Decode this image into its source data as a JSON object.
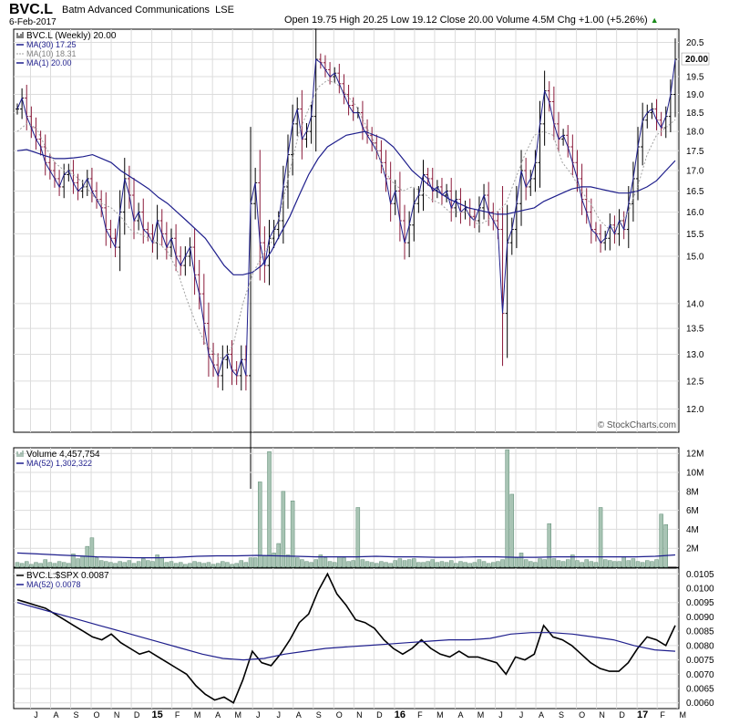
{
  "header": {
    "symbol": "BVC.L",
    "company": "Batm Advanced Communications",
    "exchange": "LSE",
    "date": "6-Feb-2017",
    "ohlc_text": "Open 19.75  High 20.25  Low 19.12  Close 20.00  Volume 4.5M  Chg +1.00 (+5.26%)",
    "ohlc_arrow": "▲",
    "credit": "© StockCharts.com"
  },
  "colors": {
    "price_up": "#000000",
    "price_down": "#8b1a3a",
    "ma_line": "#1e1e8c",
    "ma_fast": "#a0a0a0",
    "volume_bar": "#a8c4b4",
    "volume_bar_stroke": "#5c8a72",
    "grid": "#dcdcdc"
  },
  "legends": {
    "price": [
      {
        "text": "BVC.L (Weekly) 20.00",
        "style": "bars"
      },
      {
        "text": "MA(30) 17.25",
        "style": "ma"
      },
      {
        "text": "MA(10) 18.31",
        "style": "dotted"
      },
      {
        "text": "MA(1) 20.00",
        "style": "ma"
      }
    ],
    "volume": [
      {
        "text": "Volume 4,457,754",
        "style": "vol"
      },
      {
        "text": "MA(52) 1,302,322",
        "style": "ma"
      }
    ],
    "ratio": [
      {
        "text": "BVC.L:$SPX 0.0087",
        "style": "ratio"
      },
      {
        "text": "MA(52) 0.0078",
        "style": "ma"
      }
    ]
  },
  "x_labels": [
    {
      "text": "J",
      "bold": false,
      "t": 4
    },
    {
      "text": "A",
      "bold": false,
      "t": 8.3
    },
    {
      "text": "S",
      "bold": false,
      "t": 12.6
    },
    {
      "text": "O",
      "bold": false,
      "t": 17
    },
    {
      "text": "N",
      "bold": false,
      "t": 21.3
    },
    {
      "text": "D",
      "bold": false,
      "t": 25.6
    },
    {
      "text": "15",
      "bold": true,
      "t": 30
    },
    {
      "text": "F",
      "bold": false,
      "t": 34.3
    },
    {
      "text": "M",
      "bold": false,
      "t": 38.6
    },
    {
      "text": "A",
      "bold": false,
      "t": 43
    },
    {
      "text": "M",
      "bold": false,
      "t": 47.3
    },
    {
      "text": "J",
      "bold": false,
      "t": 51.6
    },
    {
      "text": "J",
      "bold": false,
      "t": 56
    },
    {
      "text": "A",
      "bold": false,
      "t": 60.3
    },
    {
      "text": "S",
      "bold": false,
      "t": 64.6
    },
    {
      "text": "O",
      "bold": false,
      "t": 69
    },
    {
      "text": "N",
      "bold": false,
      "t": 73.3
    },
    {
      "text": "D",
      "bold": false,
      "t": 77.6
    },
    {
      "text": "16",
      "bold": true,
      "t": 82
    },
    {
      "text": "F",
      "bold": false,
      "t": 86.3
    },
    {
      "text": "M",
      "bold": false,
      "t": 90.6
    },
    {
      "text": "A",
      "bold": false,
      "t": 95
    },
    {
      "text": "M",
      "bold": false,
      "t": 99.3
    },
    {
      "text": "J",
      "bold": false,
      "t": 103.6
    },
    {
      "text": "J",
      "bold": false,
      "t": 108
    },
    {
      "text": "A",
      "bold": false,
      "t": 112.3
    },
    {
      "text": "S",
      "bold": false,
      "t": 116.6
    },
    {
      "text": "O",
      "bold": false,
      "t": 121
    },
    {
      "text": "N",
      "bold": false,
      "t": 125.3
    },
    {
      "text": "D",
      "bold": false,
      "t": 129.6
    },
    {
      "text": "17",
      "bold": true,
      "t": 134
    },
    {
      "text": "F",
      "bold": false,
      "t": 138.3
    },
    {
      "text": "M",
      "bold": false,
      "t": 142.6
    }
  ],
  "chart_data": [
    {
      "type": "ohlc",
      "title": "BVC.L (Weekly)",
      "interval": "weekly",
      "y_scale": "log",
      "ylim": [
        11.6,
        20.9
      ],
      "y_ticks": [
        12.0,
        12.5,
        13.0,
        13.5,
        14.0,
        15.0,
        15.5,
        16.0,
        16.5,
        17.0,
        17.5,
        18.0,
        18.5,
        19.0,
        19.5,
        20.0,
        20.5
      ],
      "grid": true,
      "legend_position": "top-left",
      "close": [
        18.6,
        18.9,
        18.4,
        18.1,
        17.8,
        17.6,
        17.2,
        17.0,
        16.8,
        16.6,
        16.9,
        17.0,
        16.7,
        16.5,
        16.6,
        16.8,
        16.5,
        16.3,
        16.1,
        15.6,
        15.4,
        15.2,
        16.0,
        16.8,
        16.4,
        15.8,
        16.0,
        15.6,
        15.5,
        15.3,
        15.8,
        15.5,
        15.2,
        15.4,
        15.0,
        14.8,
        15.0,
        15.2,
        14.6,
        14.2,
        13.6,
        13.0,
        12.8,
        12.6,
        12.9,
        13.0,
        12.7,
        12.6,
        12.9,
        12.6,
        16.2,
        16.7,
        15.3,
        14.8,
        15.4,
        15.6,
        15.8,
        16.6,
        17.4,
        18.2,
        18.6,
        17.8,
        18.0,
        18.4,
        20.0,
        19.9,
        19.7,
        19.5,
        19.6,
        19.3,
        19.0,
        18.7,
        18.5,
        18.5,
        18.1,
        17.9,
        17.7,
        17.5,
        17.2,
        16.8,
        16.2,
        16.5,
        15.8,
        15.3,
        15.7,
        16.2,
        16.4,
        16.9,
        16.8,
        16.5,
        16.6,
        16.4,
        16.5,
        16.1,
        16.3,
        16.0,
        16.1,
        15.9,
        15.8,
        16.1,
        16.4,
        16.0,
        15.8,
        15.6,
        13.8,
        15.3,
        15.6,
        16.2,
        17.0,
        16.6,
        16.8,
        17.2,
        18.2,
        19.1,
        18.8,
        18.2,
        17.8,
        17.9,
        17.6,
        17.2,
        16.8,
        16.3,
        16.0,
        15.6,
        15.5,
        15.3,
        15.4,
        15.7,
        15.5,
        15.8,
        15.6,
        16.2,
        16.8,
        17.6,
        18.3,
        18.5,
        18.6,
        18.3,
        18.1,
        18.4,
        19.0,
        20.0
      ],
      "series": [
        {
          "name": "MA(30)",
          "last": 17.25,
          "style": "solid",
          "values": [
            17.5,
            17.53,
            17.45,
            17.37,
            17.3,
            17.3,
            17.32,
            17.35,
            17.4,
            17.3,
            17.2,
            17.0,
            16.85,
            16.7,
            16.55,
            16.35,
            16.2,
            16.0,
            15.8,
            15.6,
            15.4,
            15.1,
            14.8,
            14.6,
            14.6,
            14.65,
            14.8,
            15.1,
            15.5,
            15.9,
            16.4,
            16.9,
            17.3,
            17.6,
            17.75,
            17.9,
            17.95,
            18.0,
            17.9,
            17.8,
            17.6,
            17.3,
            17.0,
            16.8,
            16.6,
            16.45,
            16.3,
            16.2,
            16.1,
            16.05,
            16.0,
            15.95,
            15.95,
            16.0,
            16.05,
            16.1,
            16.25,
            16.35,
            16.45,
            16.55,
            16.6,
            16.6,
            16.55,
            16.5,
            16.45,
            16.45,
            16.5,
            16.6,
            16.75,
            17.0,
            17.25
          ]
        },
        {
          "name": "MA(10)",
          "last": 18.31,
          "style": "dotted",
          "values": [
            18.0,
            18.2,
            18.1,
            17.6,
            17.2,
            17.0,
            16.9,
            16.7,
            16.4,
            16.2,
            16.1,
            15.9,
            15.6,
            15.5,
            15.4,
            15.3,
            15.1,
            14.7,
            14.1,
            13.6,
            13.2,
            13.0,
            12.9,
            13.2,
            14.0,
            14.6,
            15.0,
            15.3,
            16.0,
            17.0,
            18.0,
            18.6,
            19.2,
            19.4,
            19.3,
            19.0,
            18.7,
            18.2,
            17.7,
            17.0,
            16.7,
            16.5,
            16.6,
            16.5,
            16.3,
            16.2,
            16.0,
            16.0,
            16.0,
            15.7,
            15.8,
            16.0,
            16.2,
            16.8,
            17.4,
            17.9,
            18.0,
            17.9,
            17.2,
            16.9,
            16.5,
            16.2,
            15.8,
            15.6,
            15.7,
            16.0,
            16.6,
            17.4,
            17.9,
            18.1,
            18.31
          ]
        }
      ],
      "close_label": "20.00"
    },
    {
      "type": "bar",
      "title": "Volume",
      "ylim": [
        0,
        12.6
      ],
      "y_unit": "M",
      "y_ticks": [
        2,
        4,
        6,
        8,
        10,
        12
      ],
      "y_tick_labels": [
        "2M",
        "4M",
        "6M",
        "8M",
        "10M",
        "12M"
      ],
      "grid": true,
      "values": [
        0.5,
        0.4,
        0.6,
        0.3,
        0.5,
        0.4,
        0.8,
        0.5,
        0.4,
        0.6,
        0.5,
        0.4,
        1.4,
        0.9,
        1.2,
        2.2,
        3.1,
        1.0,
        0.7,
        0.6,
        0.5,
        0.4,
        0.6,
        0.5,
        0.7,
        0.4,
        0.6,
        0.9,
        0.7,
        0.6,
        1.3,
        1.0,
        0.5,
        0.6,
        0.4,
        0.5,
        0.3,
        0.4,
        0.6,
        0.5,
        0.4,
        0.5,
        0.3,
        0.4,
        0.6,
        0.5,
        0.3,
        0.4,
        0.7,
        0.5,
        1.0,
        1.0,
        9.0,
        1.2,
        12.2,
        1.5,
        2.5,
        8.0,
        1.3,
        7.0,
        1.0,
        0.8,
        0.6,
        0.5,
        0.8,
        1.3,
        1.0,
        0.6,
        0.5,
        1.1,
        1.0,
        0.6,
        0.7,
        6.3,
        0.8,
        0.6,
        0.5,
        0.4,
        0.6,
        0.5,
        0.4,
        0.7,
        0.9,
        0.7,
        0.8,
        0.9,
        0.5,
        0.5,
        0.6,
        0.8,
        0.5,
        0.6,
        0.5,
        0.7,
        0.4,
        0.6,
        0.5,
        0.4,
        0.5,
        0.8,
        0.6,
        0.4,
        0.5,
        0.6,
        0.8,
        12.4,
        7.7,
        1.0,
        1.5,
        0.8,
        0.6,
        0.5,
        0.9,
        0.8,
        4.6,
        0.9,
        0.7,
        0.6,
        0.8,
        1.3,
        0.7,
        0.5,
        0.8,
        0.6,
        0.5,
        6.3,
        0.8,
        0.7,
        0.6,
        0.6,
        1.1,
        0.7,
        0.9,
        0.6,
        0.5,
        0.7,
        0.6,
        0.8,
        5.6,
        4.5
      ],
      "series": [
        {
          "name": "MA(52)",
          "last_label": "1,302,322",
          "values": [
            1.5,
            1.4,
            1.3,
            1.2,
            1.1,
            1.05,
            1.0,
            1.0,
            1.05,
            1.15,
            1.2,
            1.2,
            1.25,
            1.2,
            1.15,
            1.1,
            1.1,
            1.1,
            1.15,
            1.1,
            1.1,
            1.05,
            1.05,
            1.1,
            1.1,
            1.05,
            1.05,
            1.1,
            1.1,
            1.1,
            1.1,
            1.1,
            1.15,
            1.3
          ]
        }
      ]
    },
    {
      "type": "line",
      "title": "BVC.L:$SPX",
      "ylim": [
        0.0058,
        0.0107
      ],
      "y_ticks": [
        0.006,
        0.0065,
        0.007,
        0.0075,
        0.008,
        0.0085,
        0.009,
        0.0095,
        0.01,
        0.0105
      ],
      "y_tick_labels": [
        "0.0060",
        "0.0065",
        "0.0070",
        "0.0075",
        "0.0080",
        "0.0085",
        "0.0090",
        "0.0095",
        "0.0100",
        "0.0105"
      ],
      "grid": true,
      "series": [
        {
          "name": "BVC.L:$SPX",
          "last_label": "0.0087",
          "values": [
            0.0096,
            0.0095,
            0.0094,
            0.0093,
            0.0091,
            0.0089,
            0.0087,
            0.0085,
            0.0083,
            0.0082,
            0.0084,
            0.0081,
            0.0079,
            0.0077,
            0.0078,
            0.0076,
            0.0074,
            0.0072,
            0.007,
            0.0066,
            0.0063,
            0.0061,
            0.0062,
            0.006,
            0.0068,
            0.0078,
            0.0074,
            0.0073,
            0.0077,
            0.0082,
            0.0088,
            0.0091,
            0.0099,
            0.0105,
            0.0098,
            0.0094,
            0.0089,
            0.0088,
            0.0086,
            0.0082,
            0.0079,
            0.0077,
            0.0079,
            0.0082,
            0.0079,
            0.0077,
            0.0076,
            0.0078,
            0.0076,
            0.0076,
            0.0075,
            0.0074,
            0.007,
            0.0076,
            0.0075,
            0.0077,
            0.0087,
            0.0083,
            0.0082,
            0.008,
            0.0077,
            0.0074,
            0.0072,
            0.0071,
            0.0071,
            0.0074,
            0.0079,
            0.0083,
            0.0082,
            0.008,
            0.0087
          ]
        },
        {
          "name": "MA(52)",
          "last_label": "0.0078",
          "values": [
            0.0095,
            0.0093,
            0.0091,
            0.0089,
            0.0087,
            0.0085,
            0.0083,
            0.0081,
            0.0079,
            0.0077,
            0.00755,
            0.0075,
            0.00755,
            0.0077,
            0.0078,
            0.0079,
            0.00795,
            0.008,
            0.00805,
            0.0081,
            0.00815,
            0.0082,
            0.0082,
            0.00825,
            0.0084,
            0.00845,
            0.00845,
            0.0084,
            0.0083,
            0.0082,
            0.008,
            0.00785,
            0.0078
          ]
        }
      ]
    }
  ]
}
